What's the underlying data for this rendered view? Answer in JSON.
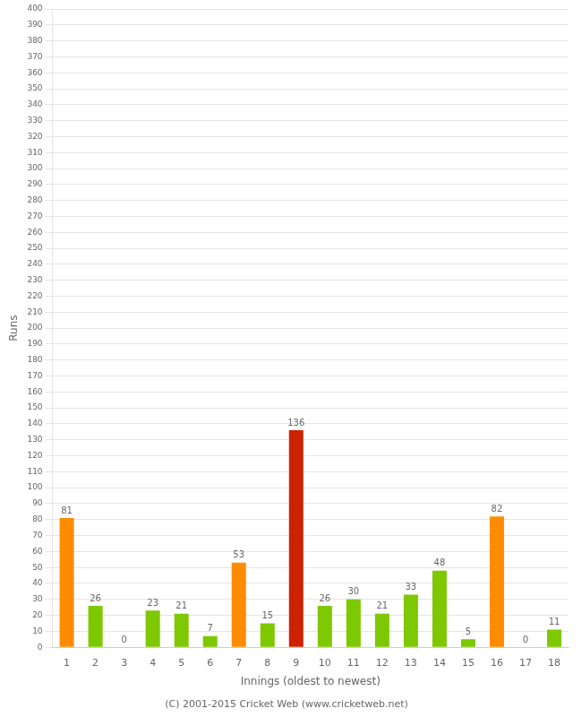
{
  "chart_data": {
    "type": "bar",
    "xlabel": "Innings (oldest to newest)",
    "ylabel": "Runs",
    "annotations": [
      "(C) 2001-2015 Cricket Web (www.cricketweb.net)"
    ],
    "categories": [
      "1",
      "2",
      "3",
      "4",
      "5",
      "6",
      "7",
      "8",
      "9",
      "10",
      "11",
      "12",
      "13",
      "14",
      "15",
      "16",
      "17",
      "18"
    ],
    "values": [
      81,
      26,
      0,
      23,
      21,
      7,
      53,
      15,
      136,
      26,
      30,
      21,
      33,
      48,
      5,
      82,
      0,
      11
    ],
    "colors": [
      "#ff8c00",
      "#7dc800",
      "#7dc800",
      "#7dc800",
      "#7dc800",
      "#7dc800",
      "#ff8c00",
      "#7dc800",
      "#cc2200",
      "#7dc800",
      "#7dc800",
      "#7dc800",
      "#7dc800",
      "#7dc800",
      "#7dc800",
      "#ff8c00",
      "#7dc800",
      "#7dc800"
    ],
    "ylim": [
      0,
      400
    ],
    "yticks": [
      0,
      10,
      20,
      30,
      40,
      50,
      60,
      70,
      80,
      90,
      100,
      110,
      120,
      130,
      140,
      150,
      160,
      170,
      180,
      190,
      200,
      210,
      220,
      230,
      240,
      250,
      260,
      270,
      280,
      290,
      300,
      310,
      320,
      330,
      340,
      350,
      360,
      370,
      380,
      390,
      400
    ],
    "grid": true,
    "data_labels": true
  }
}
